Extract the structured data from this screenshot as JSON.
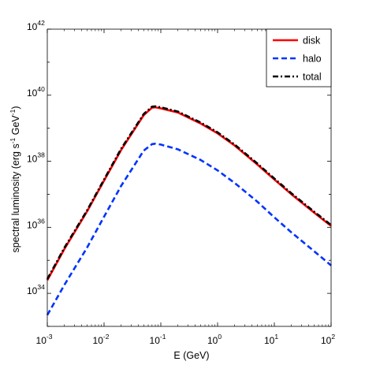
{
  "chart_data": {
    "type": "line",
    "title": "",
    "xlabel": "E (GeV)",
    "ylabel": {
      "text": "spectral luminosity (erg s",
      "exp1": "-1",
      "mid": " GeV",
      "exp2": "-1",
      "end": ")"
    },
    "xscale": "log",
    "yscale": "log",
    "xlim": [
      0.001,
      100
    ],
    "ylim": [
      1e+33,
      1e+42
    ],
    "grid": false,
    "legend_position": "top-right",
    "x_ticks": [
      {
        "base": "10",
        "exp": "-3",
        "value": 0.001
      },
      {
        "base": "10",
        "exp": "-2",
        "value": 0.01
      },
      {
        "base": "10",
        "exp": "-1",
        "value": 0.1
      },
      {
        "base": "10",
        "exp": "0",
        "value": 1
      },
      {
        "base": "10",
        "exp": "1",
        "value": 10
      },
      {
        "base": "10",
        "exp": "2",
        "value": 100
      }
    ],
    "y_ticks": [
      {
        "base": "10",
        "exp": "34",
        "value": 1e+34
      },
      {
        "base": "10",
        "exp": "36",
        "value": 1e+36
      },
      {
        "base": "10",
        "exp": "38",
        "value": 1e+38
      },
      {
        "base": "10",
        "exp": "40",
        "value": 1e+40
      },
      {
        "base": "10",
        "exp": "42",
        "value": 1e+42
      }
    ],
    "series": [
      {
        "name": "disk",
        "color": "#ff0000",
        "style": "solid",
        "x": [
          0.001,
          0.002,
          0.005,
          0.01,
          0.02,
          0.05,
          0.07,
          0.08,
          0.1,
          0.2,
          0.5,
          1,
          2,
          5,
          10,
          20,
          50,
          100
        ],
        "y": [
          2.5e+34,
          2.2e+35,
          3e+36,
          2.6e+37,
          2.2e+38,
          2.5e+39,
          4.2e+39,
          4.3e+39,
          4e+39,
          3e+39,
          1.4e+39,
          7e+38,
          3e+38,
          8e+37,
          2.8e+37,
          1e+37,
          2.8e+36,
          1.1e+36
        ]
      },
      {
        "name": "halo",
        "color": "#0033ff",
        "style": "dashed",
        "x": [
          0.001,
          0.002,
          0.005,
          0.01,
          0.02,
          0.05,
          0.07,
          0.08,
          0.1,
          0.2,
          0.5,
          1,
          2,
          5,
          10,
          20,
          50,
          100
        ],
        "y": [
          2.2e+33,
          1.8e+34,
          2.4e+35,
          2.1e+36,
          1.8e+37,
          2.1e+38,
          3.3e+38,
          3.4e+38,
          3.2e+38,
          2.3e+38,
          1.1e+38,
          5.3e+37,
          2.2e+37,
          6e+36,
          2e+36,
          7e+35,
          1.9e+35,
          7e+34
        ]
      },
      {
        "name": "total",
        "color": "#000000",
        "style": "dashdot",
        "x": [
          0.001,
          0.002,
          0.005,
          0.01,
          0.02,
          0.05,
          0.07,
          0.08,
          0.1,
          0.2,
          0.5,
          1,
          2,
          5,
          10,
          20,
          50,
          100
        ],
        "y": [
          2.7e+34,
          2.4e+35,
          3.2e+36,
          2.8e+37,
          2.4e+38,
          2.7e+39,
          4.5e+39,
          4.6e+39,
          4.3e+39,
          3.2e+39,
          1.5e+39,
          7.5e+38,
          3.2e+38,
          8.6e+37,
          3e+37,
          1.07e+37,
          3e+36,
          1.17e+36
        ]
      }
    ]
  }
}
